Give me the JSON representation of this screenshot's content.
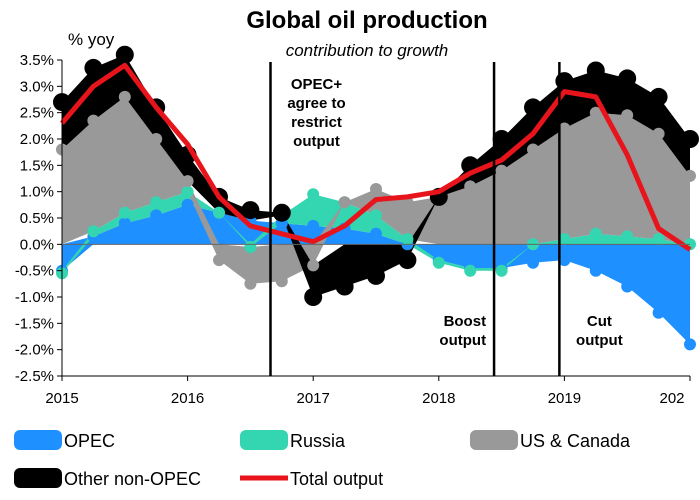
{
  "chart_data": {
    "type": "area",
    "title": "Global oil production",
    "subtitle": "contribution to growth",
    "ylabel": "% yoy",
    "xlim": [
      2015,
      2020
    ],
    "ylim": [
      -2.5,
      3.5
    ],
    "y_ticks": [
      "3.5%",
      "3.0%",
      "2.5%",
      "2.0%",
      "1.5%",
      "1.0%",
      "0.5%",
      "0.0%",
      "-0.5%",
      "-1.0%",
      "-1.5%",
      "-2.0%",
      "-2.5%"
    ],
    "x_ticks": [
      "2015",
      "2016",
      "2017",
      "2018",
      "2019",
      "202"
    ],
    "x": [
      2015.0,
      2015.25,
      2015.5,
      2015.75,
      2016.0,
      2016.25,
      2016.5,
      2016.75,
      2017.0,
      2017.25,
      2017.5,
      2017.75,
      2018.0,
      2018.25,
      2018.5,
      2018.75,
      2019.0,
      2019.25,
      2019.5,
      2019.75,
      2020.0
    ],
    "series": [
      {
        "name": "OPEC",
        "color": "#1e90ff",
        "values": [
          -0.5,
          0.15,
          0.4,
          0.55,
          0.75,
          0.6,
          0.45,
          0.4,
          0.35,
          0.3,
          0.2,
          0.0,
          -0.3,
          -0.45,
          -0.45,
          -0.35,
          -0.3,
          -0.5,
          -0.8,
          -1.3,
          -1.9
        ]
      },
      {
        "name": "Russia",
        "color": "#33d6b0",
        "values": [
          -0.05,
          0.1,
          0.2,
          0.25,
          0.25,
          0.0,
          -0.05,
          0.15,
          0.6,
          0.5,
          0.35,
          0.1,
          -0.05,
          -0.05,
          -0.05,
          0.0,
          0.1,
          0.2,
          0.15,
          0.1,
          0.0
        ]
      },
      {
        "name": "US & Canada",
        "color": "#999999",
        "values": [
          1.8,
          2.1,
          2.2,
          1.2,
          0.2,
          -0.3,
          -0.7,
          -0.7,
          -0.4,
          0.0,
          0.5,
          0.7,
          0.9,
          1.1,
          1.4,
          1.8,
          2.1,
          2.3,
          2.3,
          2.0,
          1.3
        ]
      },
      {
        "name": "Other non-OPEC",
        "color": "#000000",
        "values": [
          0.9,
          1.0,
          0.8,
          0.6,
          0.5,
          0.3,
          0.2,
          0.05,
          -0.6,
          -0.8,
          -0.6,
          -0.3,
          0.0,
          0.4,
          0.6,
          0.8,
          0.9,
          0.8,
          0.7,
          0.7,
          0.7
        ]
      },
      {
        "name": "Total output",
        "color": "#e8141b",
        "type": "line",
        "values": [
          2.3,
          3.0,
          3.4,
          2.6,
          1.9,
          0.9,
          0.35,
          0.2,
          0.05,
          0.35,
          0.85,
          0.9,
          1.0,
          1.35,
          1.6,
          2.1,
          2.9,
          2.8,
          1.7,
          0.3,
          -0.1
        ]
      }
    ],
    "annotations": [
      {
        "x": 2016.66,
        "lines": [
          "OPEC+",
          "agree to",
          "restrict",
          "output"
        ],
        "label_y": 2.95,
        "align": "center"
      },
      {
        "x": 2018.44,
        "lines": [
          "Boost",
          "output"
        ],
        "label_y": -1.55,
        "align": "right"
      },
      {
        "x": 2018.96,
        "lines": [
          "Cut",
          "output"
        ],
        "label_y": -1.55,
        "align": "center"
      }
    ],
    "legend": {
      "position": "bottom"
    },
    "grid": false
  }
}
